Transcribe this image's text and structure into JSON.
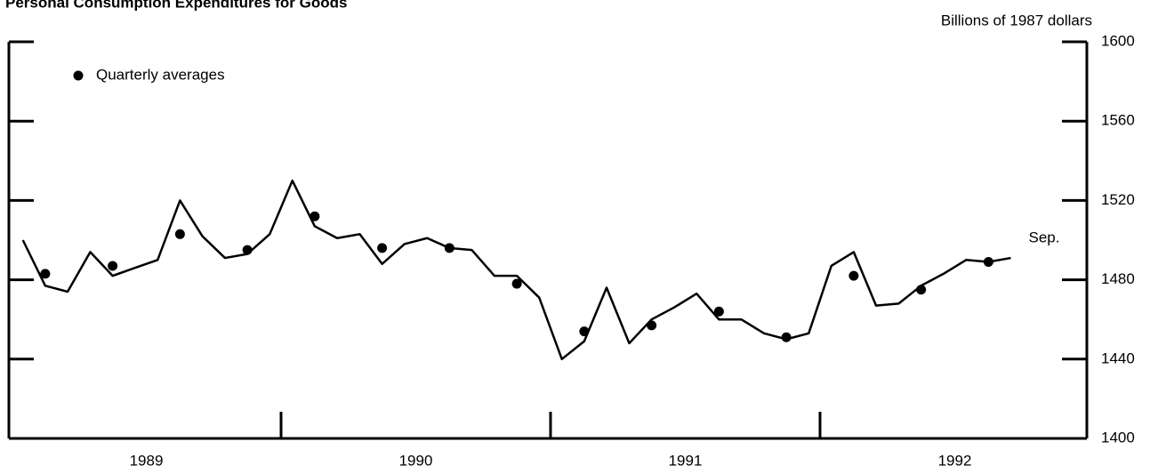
{
  "chart_data": {
    "type": "line",
    "title": "Personal Consumption Expenditures for Goods",
    "y_axis_label": "Billions of 1987 dollars",
    "annotation": "Sep.",
    "xlim": [
      1989,
      1993
    ],
    "xticks": [
      {
        "value": 1989.5,
        "label": "1989"
      },
      {
        "value": 1990.5,
        "label": "1990"
      },
      {
        "value": 1991.5,
        "label": "1991"
      },
      {
        "value": 1992.5,
        "label": "1992"
      }
    ],
    "ylim": [
      1400,
      1600
    ],
    "yticks": [
      1400,
      1440,
      1480,
      1520,
      1560,
      1600
    ],
    "series": [
      {
        "kind": "line",
        "color": "#000000",
        "x": [
          1989.042,
          1989.125,
          1989.208,
          1989.292,
          1989.375,
          1989.458,
          1989.542,
          1989.625,
          1989.708,
          1989.792,
          1989.875,
          1989.958,
          1990.042,
          1990.125,
          1990.208,
          1990.292,
          1990.375,
          1990.458,
          1990.542,
          1990.625,
          1990.708,
          1990.792,
          1990.875,
          1990.958,
          1991.042,
          1991.125,
          1991.208,
          1991.292,
          1991.375,
          1991.458,
          1991.542,
          1991.625,
          1991.708,
          1991.792,
          1991.875,
          1991.958,
          1992.042,
          1992.125,
          1992.208,
          1992.292,
          1992.375,
          1992.458,
          1992.542,
          1992.625,
          1992.708
        ],
        "values": [
          1500,
          1477,
          1474,
          1494,
          1482,
          1486,
          1490,
          1520,
          1502,
          1491,
          1493,
          1503,
          1530,
          1507,
          1501,
          1503,
          1488,
          1498,
          1501,
          1496,
          1495,
          1482,
          1482,
          1471,
          1440,
          1449,
          1476,
          1448,
          1460,
          1466,
          1473,
          1460,
          1460,
          1453,
          1450,
          1453,
          1487,
          1494,
          1467,
          1468,
          1477,
          1483,
          1490,
          1489,
          1491
        ]
      },
      {
        "kind": "dots",
        "name": "Quarterly averages",
        "color": "#000000",
        "x": [
          1989.125,
          1989.375,
          1989.625,
          1989.875,
          1990.125,
          1990.375,
          1990.625,
          1990.875,
          1991.125,
          1991.375,
          1991.625,
          1991.875,
          1992.125,
          1992.375,
          1992.625
        ],
        "values": [
          1483,
          1487,
          1503,
          1495,
          1512,
          1496,
          1496,
          1478,
          1454,
          1457,
          1464,
          1451,
          1482,
          1475,
          1489
        ]
      }
    ]
  }
}
